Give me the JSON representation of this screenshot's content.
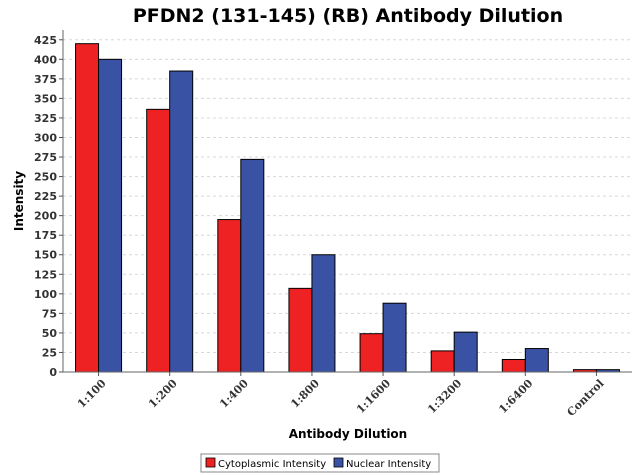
{
  "chart_data": {
    "type": "bar",
    "title": "PFDN2 (131-145) (RB) Antibody Dilution",
    "xlabel": "Antibody Dilution",
    "ylabel": "Intensity",
    "categories": [
      "1:100",
      "1:200",
      "1:400",
      "1:800",
      "1:1600",
      "1:3200",
      "1:6400",
      "Control"
    ],
    "series": [
      {
        "name": "Cytoplasmic Intensity",
        "color": "#ee2222",
        "values": [
          420,
          336,
          195,
          107,
          49,
          27,
          16,
          3
        ]
      },
      {
        "name": "Nuclear Intensity",
        "color": "#3a52a4",
        "values": [
          400,
          385,
          272,
          150,
          88,
          51,
          30,
          3
        ]
      }
    ],
    "ylim": [
      0,
      437.5
    ],
    "yticks": [
      0,
      25,
      50,
      75,
      100,
      125,
      150,
      175,
      200,
      225,
      250,
      275,
      300,
      325,
      350,
      375,
      400,
      425
    ],
    "grid": true,
    "legend_position": "bottom"
  }
}
